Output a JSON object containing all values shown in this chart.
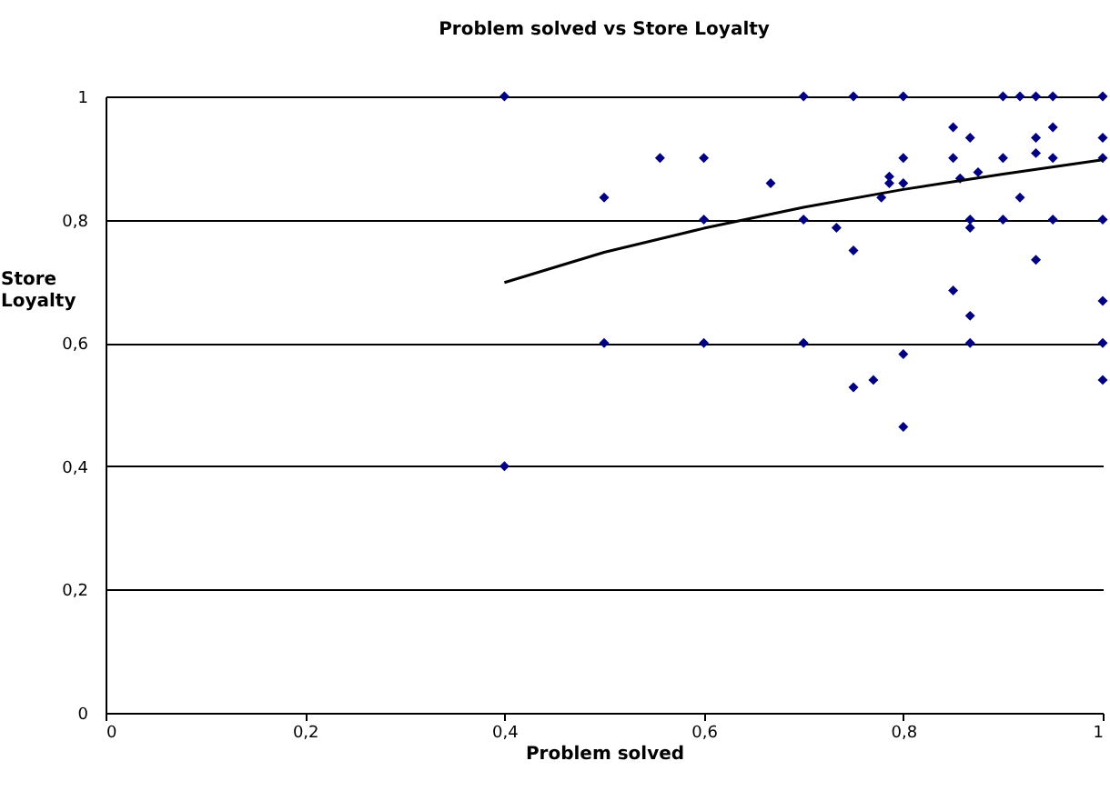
{
  "chart_data": {
    "type": "scatter",
    "title": "Problem solved vs Store Loyalty",
    "xlabel": "Problem solved",
    "ylabel": "Store Loyalty",
    "grid": "y",
    "marker": "diamond",
    "xlim": [
      0,
      1
    ],
    "ylim": [
      0,
      1
    ],
    "xticks": [
      0,
      {
        "value": 0.2,
        "label": "0,2"
      },
      {
        "value": 0.4,
        "label": "0,4"
      },
      {
        "value": 0.6,
        "label": "0,6"
      },
      {
        "value": 0.8,
        "label": "0,8"
      },
      1
    ],
    "yticks": [
      0,
      {
        "value": 0.2,
        "label": "0,2"
      },
      {
        "value": 0.4,
        "label": "0,4"
      },
      {
        "value": 0.6,
        "label": "0,6"
      },
      {
        "value": 0.8,
        "label": "0,8"
      },
      1
    ],
    "series": [
      {
        "color": "#000080",
        "x": [
          0.4,
          0.5,
          0.556,
          0.6,
          0.667,
          0.6,
          0.5,
          0.6,
          0.4,
          0.7,
          0.75,
          0.8,
          0.9,
          0.917,
          0.933,
          0.95,
          1.0,
          0.85,
          0.867,
          0.933,
          0.95,
          1.0,
          0.8,
          0.85,
          0.9,
          0.95,
          1.0,
          0.933,
          0.786,
          0.786,
          0.8,
          0.857,
          0.875,
          0.778,
          0.917,
          0.7,
          0.867,
          0.9,
          0.95,
          1.0,
          0.733,
          0.867,
          0.75,
          0.933,
          0.85,
          1.0,
          0.867,
          0.7,
          0.867,
          1.0,
          0.8,
          0.75,
          0.77,
          1.0,
          0.8
        ],
        "values": [
          1.0,
          0.836,
          0.9,
          0.9,
          0.859,
          0.8,
          0.6,
          0.6,
          0.4,
          1.0,
          1.0,
          1.0,
          1.0,
          1.0,
          1.0,
          1.0,
          1.0,
          0.95,
          0.933,
          0.933,
          0.95,
          0.933,
          0.9,
          0.9,
          0.9,
          0.9,
          0.9,
          0.908,
          0.87,
          0.859,
          0.859,
          0.867,
          0.877,
          0.836,
          0.836,
          0.8,
          0.8,
          0.8,
          0.8,
          0.8,
          0.787,
          0.787,
          0.75,
          0.735,
          0.685,
          0.668,
          0.644,
          0.6,
          0.6,
          0.6,
          0.582,
          0.528,
          0.54,
          0.54,
          0.464
        ]
      },
      {
        "type": "line",
        "color": "#000000",
        "marker": "none",
        "x": [
          0.4,
          0.5,
          0.6,
          0.7,
          0.8,
          0.9,
          1.0
        ],
        "values": [
          0.698,
          0.747,
          0.786,
          0.82,
          0.849,
          0.874,
          0.897
        ]
      }
    ]
  }
}
